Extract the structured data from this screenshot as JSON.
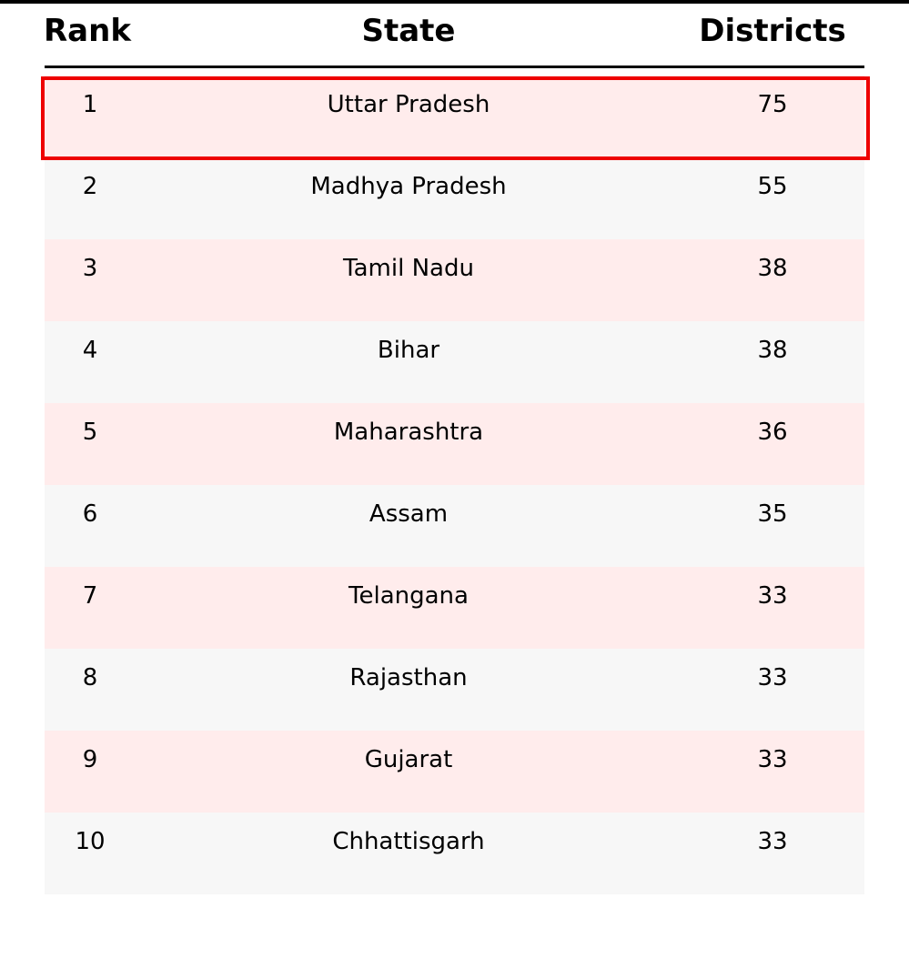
{
  "chart_data": {
    "type": "table",
    "columns": [
      "Rank",
      "State",
      "Districts"
    ],
    "rows": [
      {
        "rank": "1",
        "state": "Uttar Pradesh",
        "districts": "75"
      },
      {
        "rank": "2",
        "state": "Madhya Pradesh",
        "districts": "55"
      },
      {
        "rank": "3",
        "state": "Tamil Nadu",
        "districts": "38"
      },
      {
        "rank": "4",
        "state": "Bihar",
        "districts": "38"
      },
      {
        "rank": "5",
        "state": "Maharashtra",
        "districts": "36"
      },
      {
        "rank": "6",
        "state": "Assam",
        "districts": "35"
      },
      {
        "rank": "7",
        "state": "Telangana",
        "districts": "33"
      },
      {
        "rank": "8",
        "state": "Rajasthan",
        "districts": "33"
      },
      {
        "rank": "9",
        "state": "Gujarat",
        "districts": "33"
      },
      {
        "rank": "10",
        "state": "Chhattisgarh",
        "districts": "33"
      }
    ],
    "highlighted_row": 0,
    "colors": {
      "highlight_border": "#ee0000",
      "row_odd": "#ffecec",
      "row_even": "#f7f7f7"
    }
  }
}
